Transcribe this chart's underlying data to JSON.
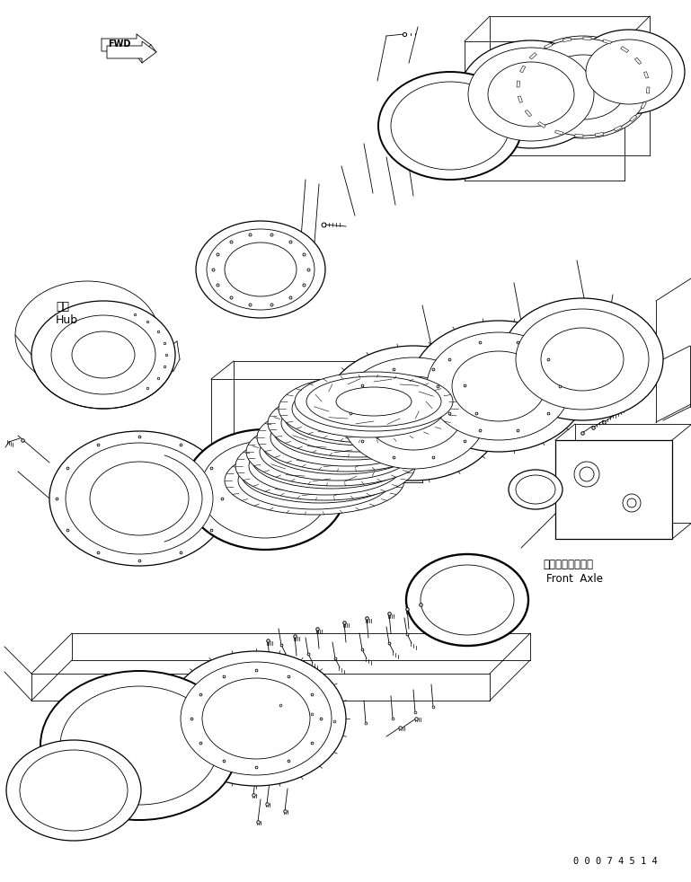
{
  "bg_color": "#ffffff",
  "line_color": "#000000",
  "fig_width": 7.69,
  "fig_height": 9.82,
  "dpi": 100,
  "labels": {
    "hub_jp": "ハブ",
    "hub_en": "Hub",
    "front_axle_jp": "フロントアクスル",
    "front_axle_en": "Front  Axle",
    "part_number": "0 0 0 7 4 5 1 4"
  }
}
